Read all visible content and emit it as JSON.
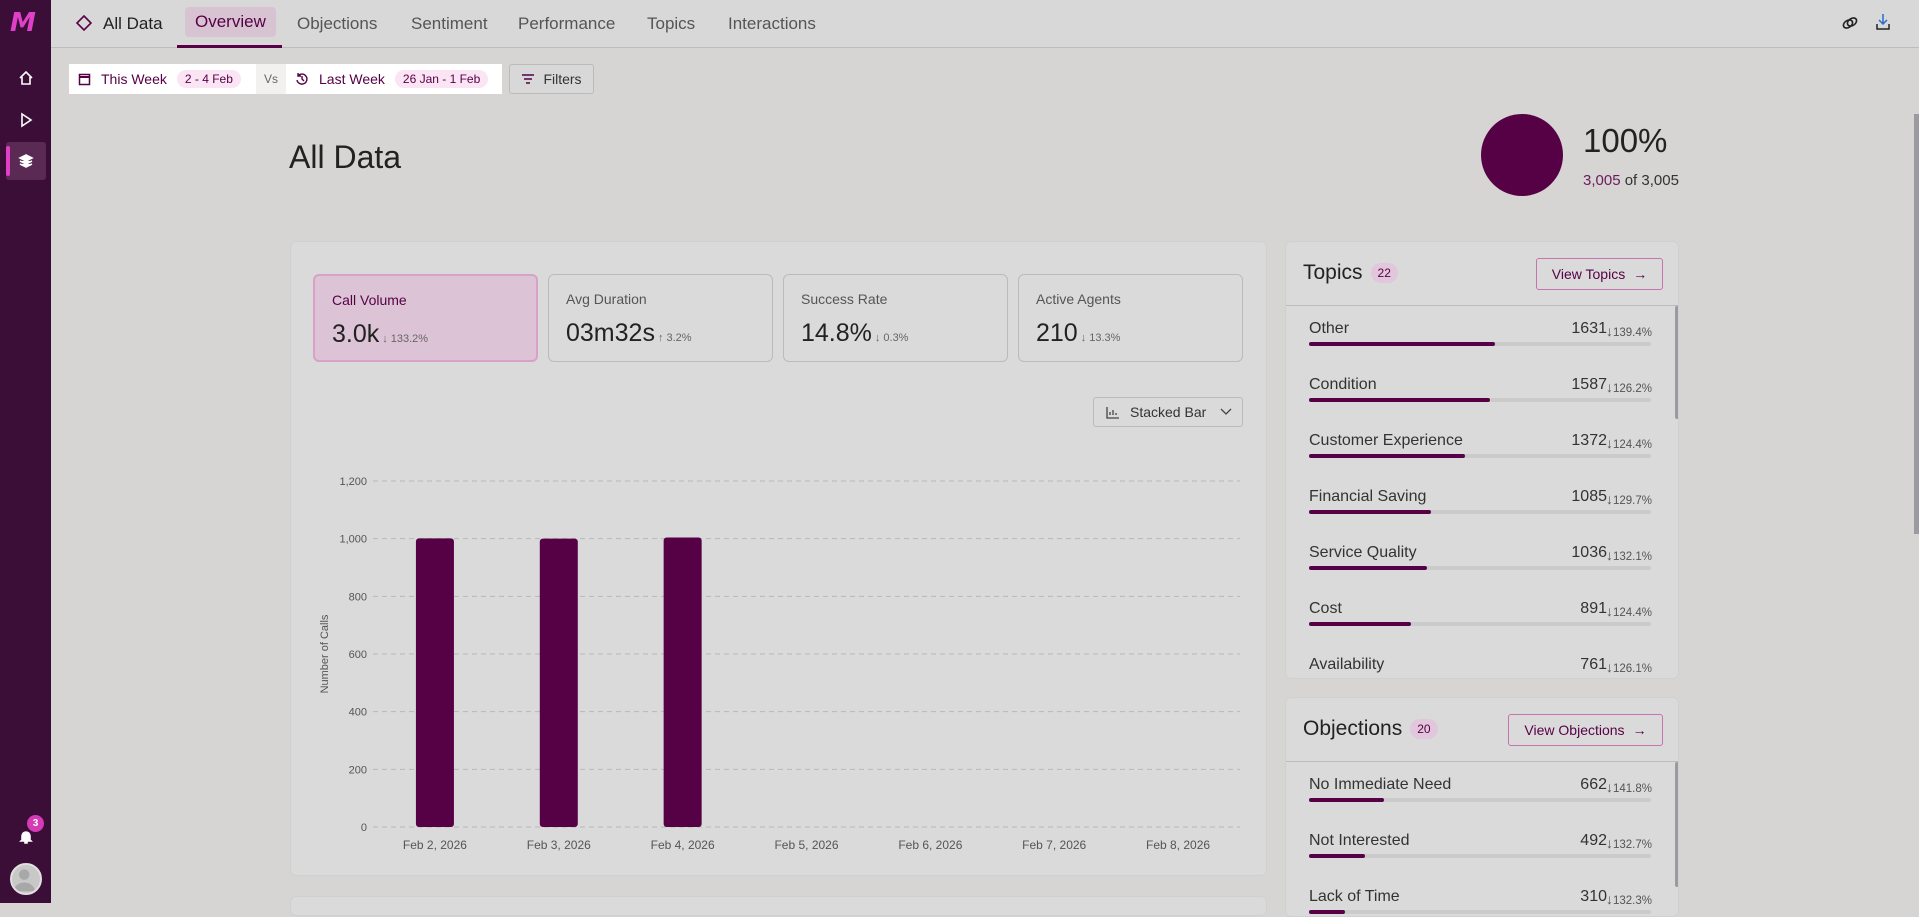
{
  "brand": {
    "logo": "M"
  },
  "sidebar": {
    "items": [
      {
        "name": "home"
      },
      {
        "name": "play"
      },
      {
        "name": "layers",
        "active": true
      }
    ],
    "notifications": "3"
  },
  "tabs": {
    "dataset": "All Data",
    "items": [
      "Overview",
      "Objections",
      "Sentiment",
      "Performance",
      "Topics",
      "Interactions"
    ],
    "active": "Overview"
  },
  "filters": {
    "this_week": "This Week",
    "this_range": "2 - 4 Feb",
    "vs": "Vs",
    "last_week": "Last Week",
    "last_range": "26 Jan - 1 Feb",
    "filters": "Filters"
  },
  "page": {
    "title": "All Data",
    "percent": "100%",
    "count": "3,005",
    "of_label": "of 3,005",
    "coverage": 1.0
  },
  "kpis": [
    {
      "label": "Call Volume",
      "value": "3.0k",
      "dir": "down",
      "change": "133.2%",
      "active": true
    },
    {
      "label": "Avg Duration",
      "value": "03m32s",
      "dir": "up",
      "change": "3.2%"
    },
    {
      "label": "Success Rate",
      "value": "14.8%",
      "dir": "down",
      "change": "0.3%"
    },
    {
      "label": "Active Agents",
      "value": "210",
      "dir": "down",
      "change": "13.3%"
    }
  ],
  "chart_type_select": "Stacked Bar",
  "chart_data": {
    "type": "bar",
    "title": "",
    "xlabel": "",
    "ylabel": "Number of Calls",
    "ylim": [
      0,
      1200
    ],
    "yticks": [
      "0",
      "200",
      "400",
      "600",
      "800",
      "1,000",
      "1,200"
    ],
    "categories": [
      "Feb 2, 2026",
      "Feb 3, 2026",
      "Feb 4, 2026",
      "Feb 5, 2026",
      "Feb 6, 2026",
      "Feb 7, 2026",
      "Feb 8, 2026"
    ],
    "values": [
      1001,
      1000,
      1004,
      0,
      0,
      0,
      0
    ],
    "color": "#560046",
    "grid": true
  },
  "topics": {
    "title": "Topics",
    "count": "22",
    "button": "View Topics",
    "items": [
      {
        "name": "Other",
        "count": "1631",
        "change": "139.4%",
        "fill": 0.544
      },
      {
        "name": "Condition",
        "count": "1587",
        "change": "126.2%",
        "fill": 0.528
      },
      {
        "name": "Customer Experience",
        "count": "1372",
        "change": "124.4%",
        "fill": 0.455
      },
      {
        "name": "Financial Saving",
        "count": "1085",
        "change": "129.7%",
        "fill": 0.358
      },
      {
        "name": "Service Quality",
        "count": "1036",
        "change": "132.1%",
        "fill": 0.344
      },
      {
        "name": "Cost",
        "count": "891",
        "change": "124.4%",
        "fill": 0.297
      },
      {
        "name": "Availability",
        "count": "761",
        "change": "126.1%",
        "fill": 0.25
      }
    ]
  },
  "objections": {
    "title": "Objections",
    "count": "20",
    "button": "View Objections",
    "items": [
      {
        "name": "No Immediate Need",
        "count": "662",
        "change": "141.8%",
        "fill": 0.219
      },
      {
        "name": "Not Interested",
        "count": "492",
        "change": "132.7%",
        "fill": 0.163
      },
      {
        "name": "Lack of Time",
        "count": "310",
        "change": "132.3%",
        "fill": 0.105
      }
    ]
  }
}
